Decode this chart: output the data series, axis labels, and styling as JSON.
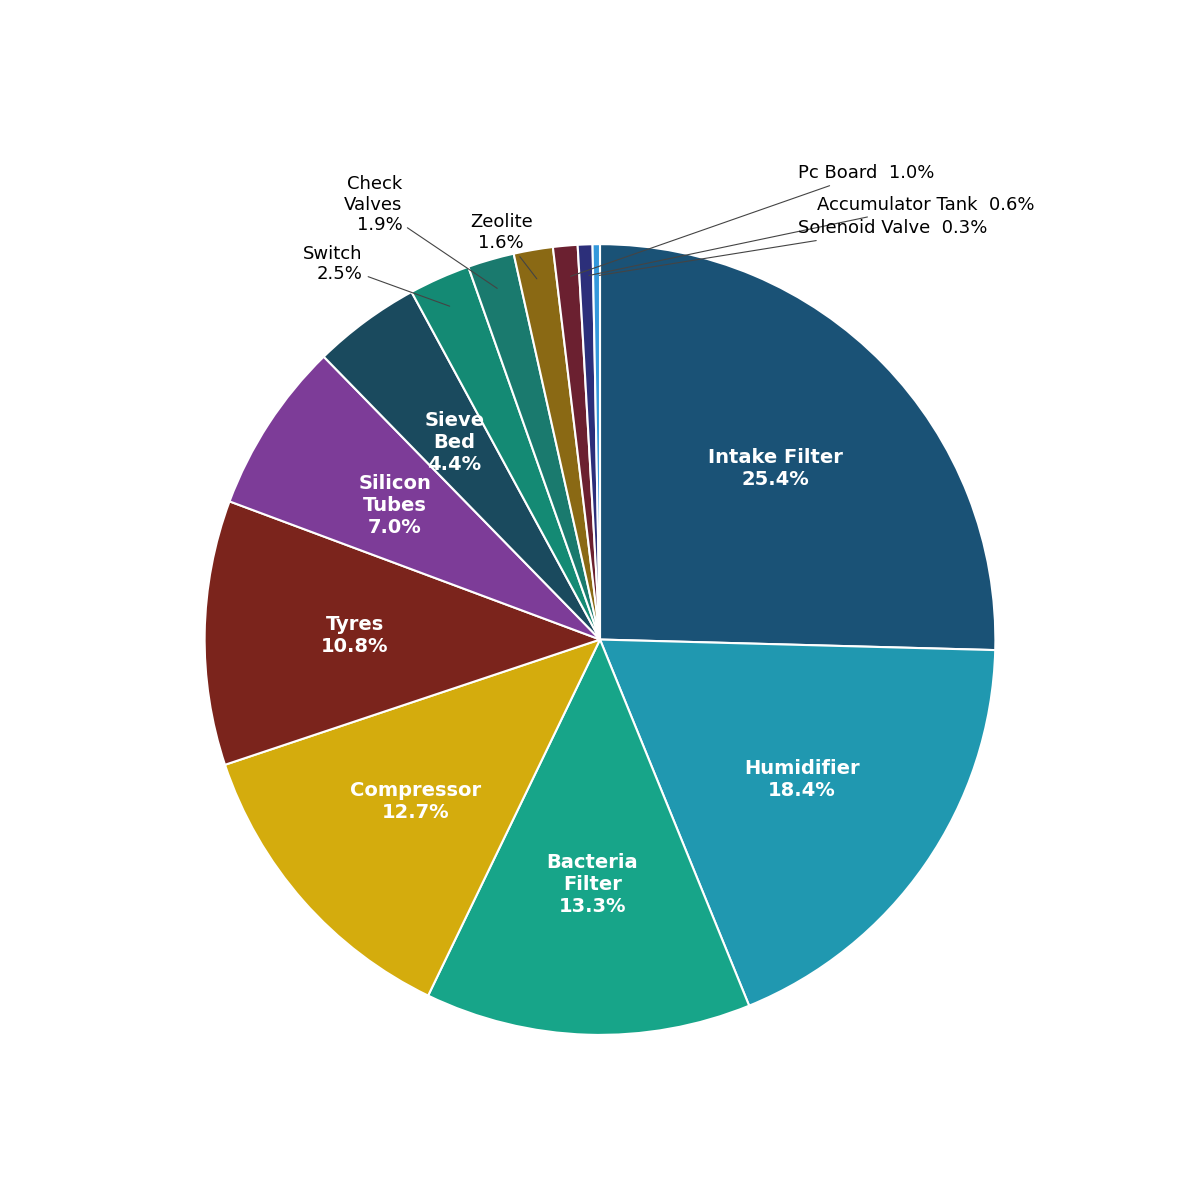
{
  "labels": [
    "Intake Filter",
    "Humidifier",
    "Bacteria\nFilter",
    "Compressor",
    "Tyres",
    "Silicon\nTubes",
    "Sieve\nBed",
    "Switch",
    "Check\nValves",
    "Zeolite",
    "Pc Board",
    "Accumulator Tank",
    "Solenoid Valve"
  ],
  "values": [
    25.4,
    18.4,
    13.3,
    12.7,
    10.8,
    7.0,
    4.4,
    2.5,
    1.9,
    1.6,
    1.0,
    0.6,
    0.3
  ],
  "colors": [
    "#1a5276",
    "#2098b0",
    "#17a589",
    "#d4ac0d",
    "#7b241c",
    "#7d3c98",
    "#1a4a5e",
    "#148a74",
    "#1a7a6e",
    "#8a6914",
    "#6b2030",
    "#2c2f7a",
    "#3498db"
  ],
  "inside_label_color": "white",
  "outside_label_color": "black",
  "inside_labels": [
    "Intake Filter",
    "Humidifier",
    "Bacteria\nFilter",
    "Compressor",
    "Tyres",
    "Silicon\nTubes",
    "Sieve\nBed"
  ],
  "outside_labels": [
    "Switch",
    "Check\nValves",
    "Zeolite",
    "Pc Board",
    "Accumulator Tank",
    "Solenoid Valve"
  ],
  "figsize": [
    12,
    12
  ],
  "dpi": 100,
  "startangle": 90
}
